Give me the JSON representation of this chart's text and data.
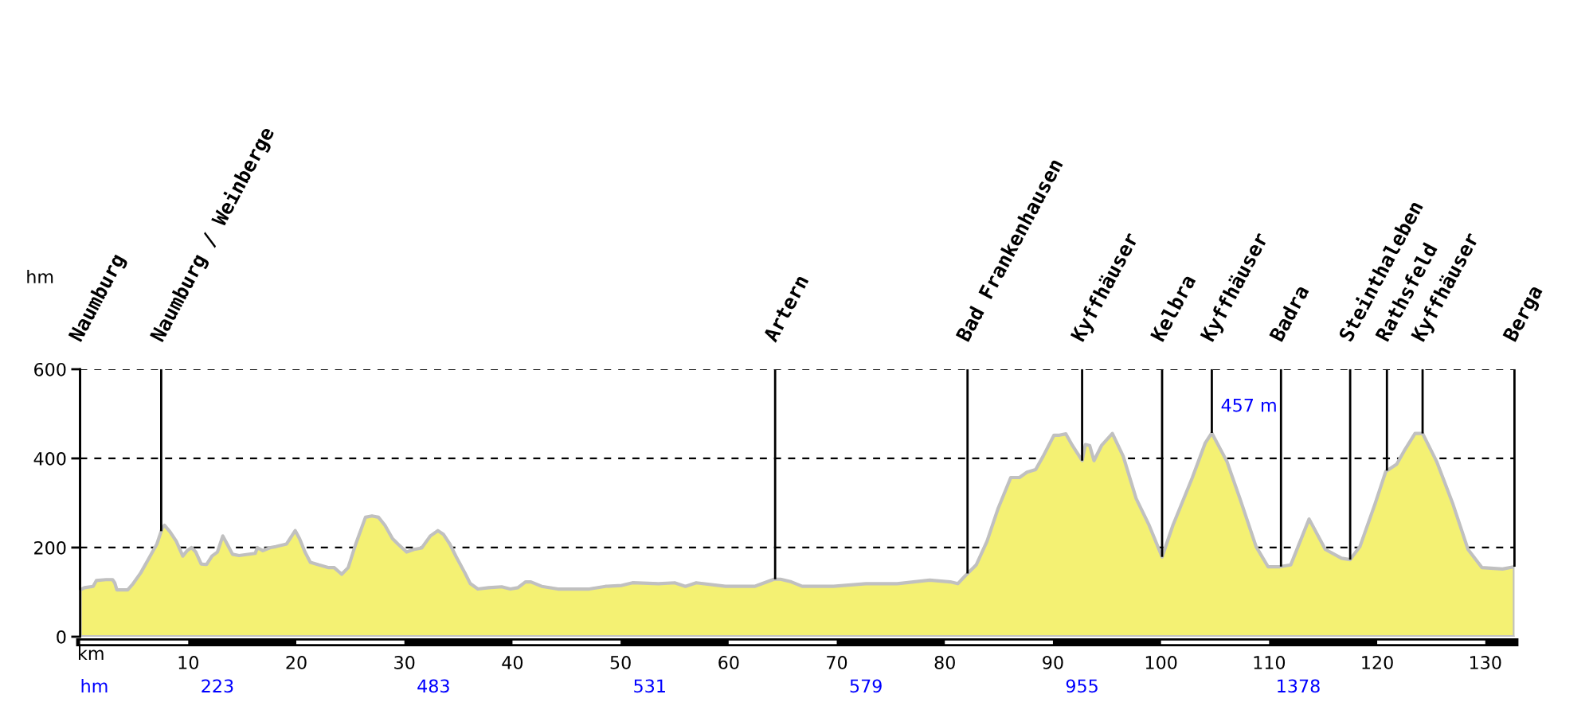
{
  "chart_data": {
    "type": "area",
    "xlabel": "km",
    "ylabel": "hm",
    "color": "#f4f173",
    "x": [
      0,
      0.4,
      1.2,
      1.5,
      2.4,
      3.0,
      3.2,
      3.4,
      4.4,
      4.9,
      5.6,
      6.3,
      7.1,
      7.6,
      7.8,
      8.3,
      8.9,
      9.5,
      9.9,
      10.3,
      10.7,
      11.2,
      11.7,
      12.2,
      12.7,
      13.2,
      13.6,
      14.1,
      14.7,
      16.2,
      16.4,
      16.9,
      17.6,
      18.1,
      19.1,
      19.9,
      20.3,
      20.8,
      21.3,
      22.1,
      23.0,
      23.5,
      24.2,
      24.8,
      25.5,
      26.4,
      27.0,
      27.6,
      28.2,
      28.9,
      29.4,
      30.2,
      30.9,
      31.6,
      32.4,
      33.1,
      33.6,
      34.2,
      34.8,
      35.6,
      36.1,
      36.8,
      37.8,
      39.0,
      39.8,
      40.5,
      41.2,
      41.7,
      42.7,
      44.2,
      47.1,
      48.6,
      50.1,
      51.1,
      53.5,
      55.0,
      56.0,
      57.0,
      59.7,
      62.4,
      64.2,
      64.8,
      65.8,
      66.8,
      69.7,
      72.7,
      75.6,
      78.6,
      80.5,
      81.2,
      81.9,
      82.9,
      83.9,
      84.9,
      86.1,
      86.9,
      87.6,
      88.4,
      89.1,
      90.1,
      90.6,
      91.2,
      91.8,
      92.7,
      93.0,
      93.4,
      93.8,
      94.5,
      95.5,
      96.5,
      97.7,
      98.9,
      100.1,
      101.1,
      102.9,
      104.1,
      104.7,
      106.1,
      107.3,
      108.8,
      109.9,
      111.0,
      112.0,
      113.7,
      115.2,
      116.7,
      117.5,
      118.4,
      119.8,
      120.8,
      121.8,
      122.5,
      123.5,
      124.2,
      125.5,
      127.0,
      128.4,
      129.7,
      131.6,
      132.7
    ],
    "values": [
      105,
      110,
      113,
      126,
      128,
      128,
      121,
      105,
      105,
      119,
      143,
      173,
      208,
      244,
      250,
      236,
      214,
      181,
      193,
      200,
      190,
      163,
      162,
      181,
      190,
      226,
      208,
      185,
      182,
      187,
      200,
      193,
      200,
      202,
      208,
      238,
      220,
      190,
      167,
      161,
      155,
      155,
      140,
      155,
      208,
      268,
      271,
      268,
      250,
      220,
      208,
      190,
      196,
      199,
      226,
      238,
      230,
      208,
      179,
      143,
      119,
      107,
      110,
      112,
      107,
      110,
      123,
      123,
      113,
      107,
      107,
      113,
      115,
      121,
      119,
      121,
      113,
      121,
      113,
      113,
      129,
      129,
      123,
      113,
      113,
      119,
      119,
      127,
      123,
      119,
      137,
      161,
      214,
      286,
      357,
      357,
      369,
      375,
      405,
      452,
      452,
      455,
      429,
      395,
      431,
      429,
      395,
      429,
      456,
      405,
      310,
      250,
      179,
      250,
      357,
      435,
      457,
      393,
      310,
      202,
      157,
      157,
      161,
      264,
      196,
      176,
      173,
      202,
      298,
      371,
      387,
      417,
      456,
      456,
      393,
      298,
      196,
      155,
      152,
      157
    ],
    "xlim": [
      0,
      132.7
    ],
    "xticks": [
      10,
      20,
      30,
      40,
      50,
      60,
      70,
      80,
      90,
      100,
      110,
      120,
      130
    ],
    "ylim": [
      0,
      600
    ],
    "yticks": [
      0,
      200,
      400,
      600
    ],
    "grid": "y",
    "ref_lines": [
      {
        "axis": "x",
        "value": 0,
        "label": "Naumburg",
        "color": "#000000"
      },
      {
        "axis": "x",
        "value": 7.5,
        "label": "Naumburg / Weinberge",
        "color": "#000000"
      },
      {
        "axis": "x",
        "value": 64.3,
        "label": "Artern",
        "color": "#000000"
      },
      {
        "axis": "x",
        "value": 82.1,
        "label": "Bad Frankenhausen",
        "color": "#000000"
      },
      {
        "axis": "x",
        "value": 92.7,
        "label": "Kyffhäuser",
        "color": "#000000"
      },
      {
        "axis": "x",
        "value": 100.1,
        "label": "Kelbra",
        "color": "#000000"
      },
      {
        "axis": "x",
        "value": 104.7,
        "label": "Kyffhäuser",
        "color": "#000000"
      },
      {
        "axis": "x",
        "value": 111.1,
        "label": "Badra",
        "color": "#000000"
      },
      {
        "axis": "x",
        "value": 117.5,
        "label": "Steinthaleben",
        "color": "#000000"
      },
      {
        "axis": "x",
        "value": 120.9,
        "label": "Rathsfeld",
        "color": "#000000"
      },
      {
        "axis": "x",
        "value": 124.2,
        "label": "Kyffhäuser",
        "color": "#000000"
      },
      {
        "axis": "x",
        "value": 132.7,
        "label": "Berga",
        "color": "#000000"
      }
    ],
    "annotations": [
      {
        "text": "457 m",
        "x": 104.7,
        "y": 457
      },
      "hm",
      "223",
      "483",
      "531",
      "579",
      "955",
      "1378"
    ]
  }
}
